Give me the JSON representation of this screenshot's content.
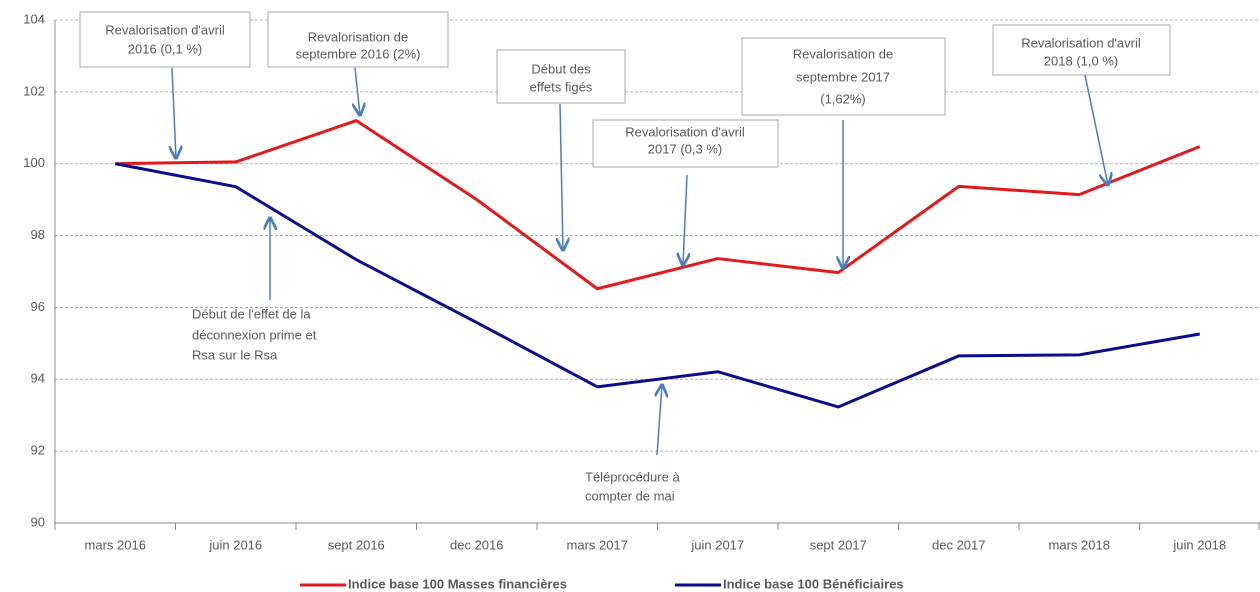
{
  "chart_data": {
    "type": "line",
    "categories": [
      "mars 2016",
      "juin 2016",
      "sept 2016",
      "dec 2016",
      "mars 2017",
      "juin 2017",
      "sept 2017",
      "dec 2017",
      "mars 2018",
      "juin 2018"
    ],
    "series": [
      {
        "name": "Indice base 100 Masses financières",
        "color": "#e31a1c",
        "values": [
          100,
          100.05,
          101.2,
          99.0,
          96.52,
          97.36,
          96.97,
          99.37,
          99.14,
          100.48
        ]
      },
      {
        "name": "Indice base 100 Bénéficiaires",
        "color": "#0d0d8c",
        "values": [
          100,
          99.36,
          97.33,
          95.58,
          93.79,
          94.21,
          93.23,
          94.65,
          94.68,
          95.26
        ]
      }
    ],
    "ylim": [
      90,
      104
    ],
    "yticks": [
      90,
      92,
      94,
      96,
      98,
      100,
      102,
      104
    ],
    "grid": true,
    "legend": "bottom",
    "annotations": [
      [
        "Revalorisation d'avril",
        "2016 (0,1 %)"
      ],
      [
        "Revalorisation de",
        "septembre 2016 (2%)"
      ],
      [
        "Début des",
        "effets figés"
      ],
      [
        "Revalorisation d'avril",
        "2017 (0,3 %)"
      ],
      [
        "Revalorisation de",
        "septembre 2017",
        "(1,62%)"
      ],
      [
        "Revalorisation d'avril",
        "2018 (1,0 %)"
      ],
      [
        "Début de l'effet de la",
        "déconnexion prime et",
        "Rsa sur le Rsa"
      ],
      [
        "Téléprocédure à",
        "compter de mai"
      ]
    ]
  }
}
